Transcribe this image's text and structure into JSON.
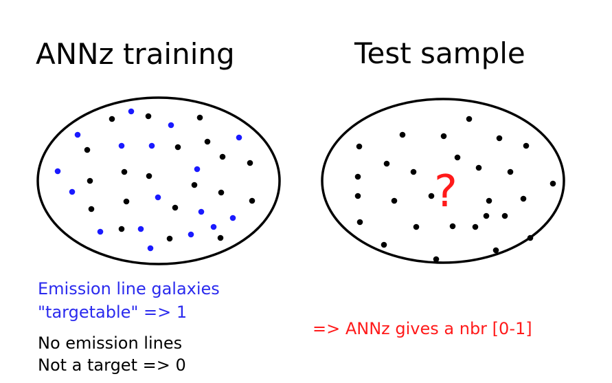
{
  "labels": {
    "left_title": "ANNz training",
    "right_title": "Test sample",
    "question_mark": "?",
    "blue_caption_line1": "Emission line galaxies",
    "blue_caption_line2": "\"targetable\" => 1",
    "black_caption_line1": "No emission lines",
    "black_caption_line2": "Not a target => 0",
    "red_caption": "=> ANNz gives a nbr [0-1]"
  },
  "colors": {
    "emission_dot": "#1a1aff",
    "non_emission_dot": "#000000",
    "question": "#ff1a1a",
    "outline": "#000000"
  }
}
